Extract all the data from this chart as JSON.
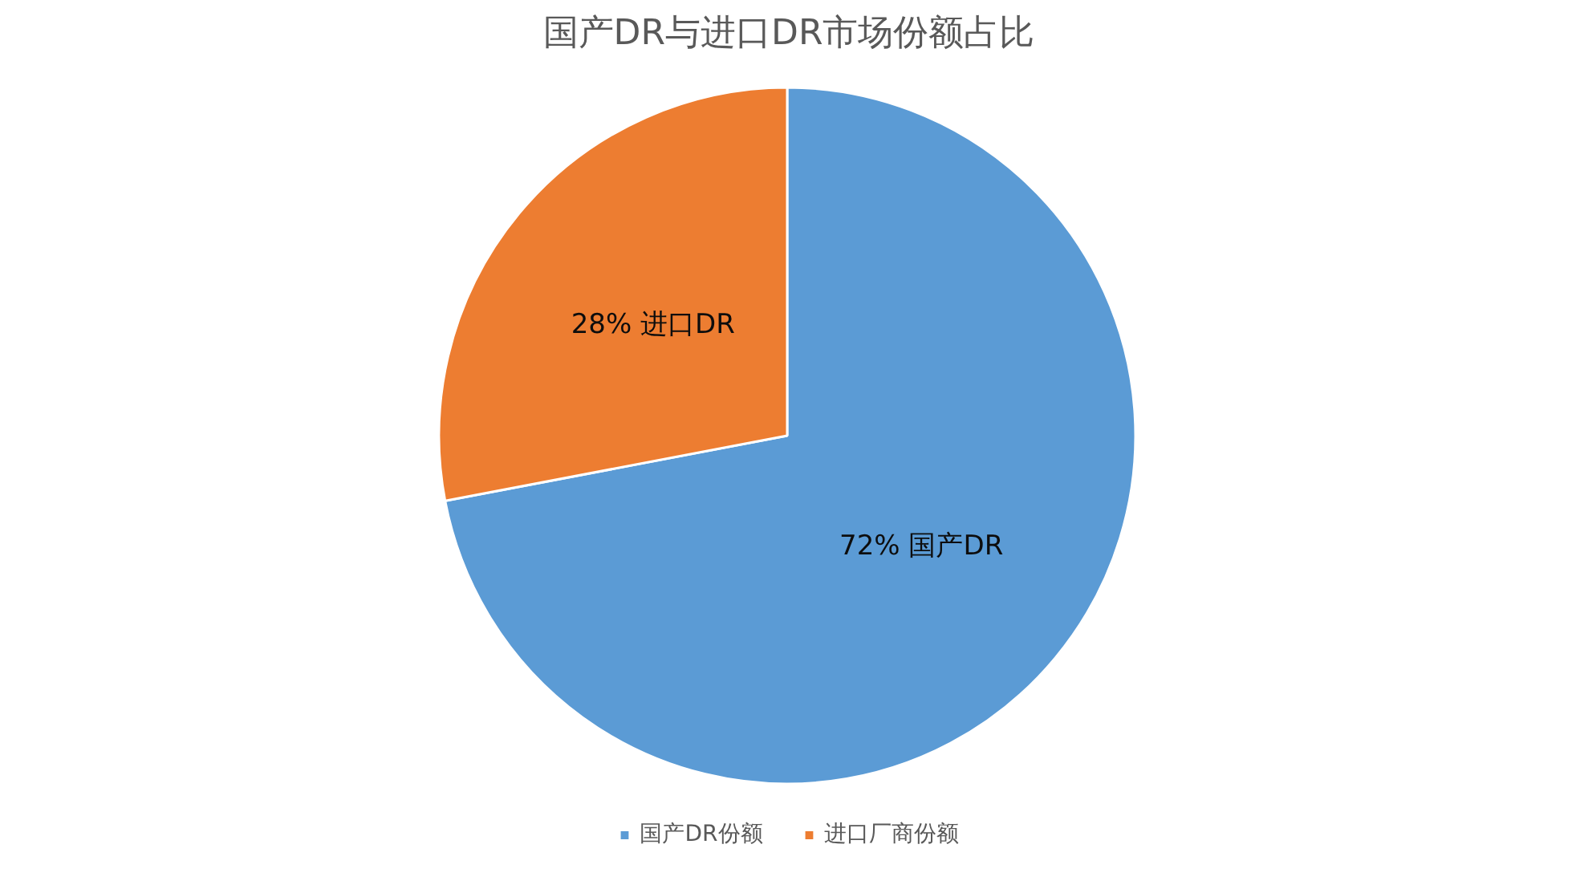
{
  "chart_data": {
    "type": "pie",
    "title": "国产DR与进口DR市场份额占比",
    "categories": [
      "国产DR份额",
      "进口厂商份额"
    ],
    "values": [
      72,
      28
    ],
    "colors": [
      "#5b9bd5",
      "#ed7d31"
    ],
    "value_labels": [
      "72% 国产DR",
      "28% 进口DR"
    ],
    "legend": "bottom"
  }
}
